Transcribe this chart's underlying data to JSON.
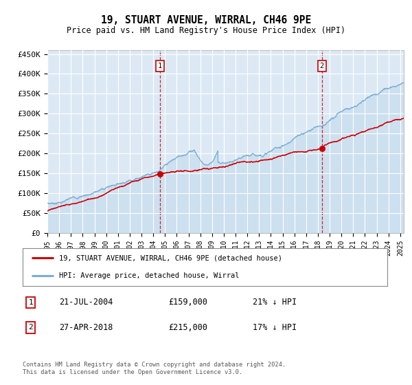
{
  "title": "19, STUART AVENUE, WIRRAL, CH46 9PE",
  "subtitle": "Price paid vs. HM Land Registry's House Price Index (HPI)",
  "plot_bg_color": "#dce9f5",
  "ylim": [
    0,
    460000
  ],
  "yticks": [
    0,
    50000,
    100000,
    150000,
    200000,
    250000,
    300000,
    350000,
    400000,
    450000
  ],
  "ytick_labels": [
    "£0",
    "£50K",
    "£100K",
    "£150K",
    "£200K",
    "£250K",
    "£300K",
    "£350K",
    "£400K",
    "£450K"
  ],
  "sale1": {
    "date_x": 2004.55,
    "price": 159000,
    "label": "1",
    "date_str": "21-JUL-2004",
    "hpi_pct": "21% ↓ HPI"
  },
  "sale2": {
    "date_x": 2018.33,
    "price": 215000,
    "label": "2",
    "date_str": "27-APR-2018",
    "hpi_pct": "17% ↓ HPI"
  },
  "legend1_label": "19, STUART AVENUE, WIRRAL, CH46 9PE (detached house)",
  "legend2_label": "HPI: Average price, detached house, Wirral",
  "footer": "Contains HM Land Registry data © Crown copyright and database right 2024.\nThis data is licensed under the Open Government Licence v3.0.",
  "hpi_color": "#7aaed4",
  "price_color": "#cc0000",
  "dashed_line_color": "#cc0000",
  "marker_box_color": "#cc0000",
  "xlim_start": 1995,
  "xlim_end": 2025.3
}
